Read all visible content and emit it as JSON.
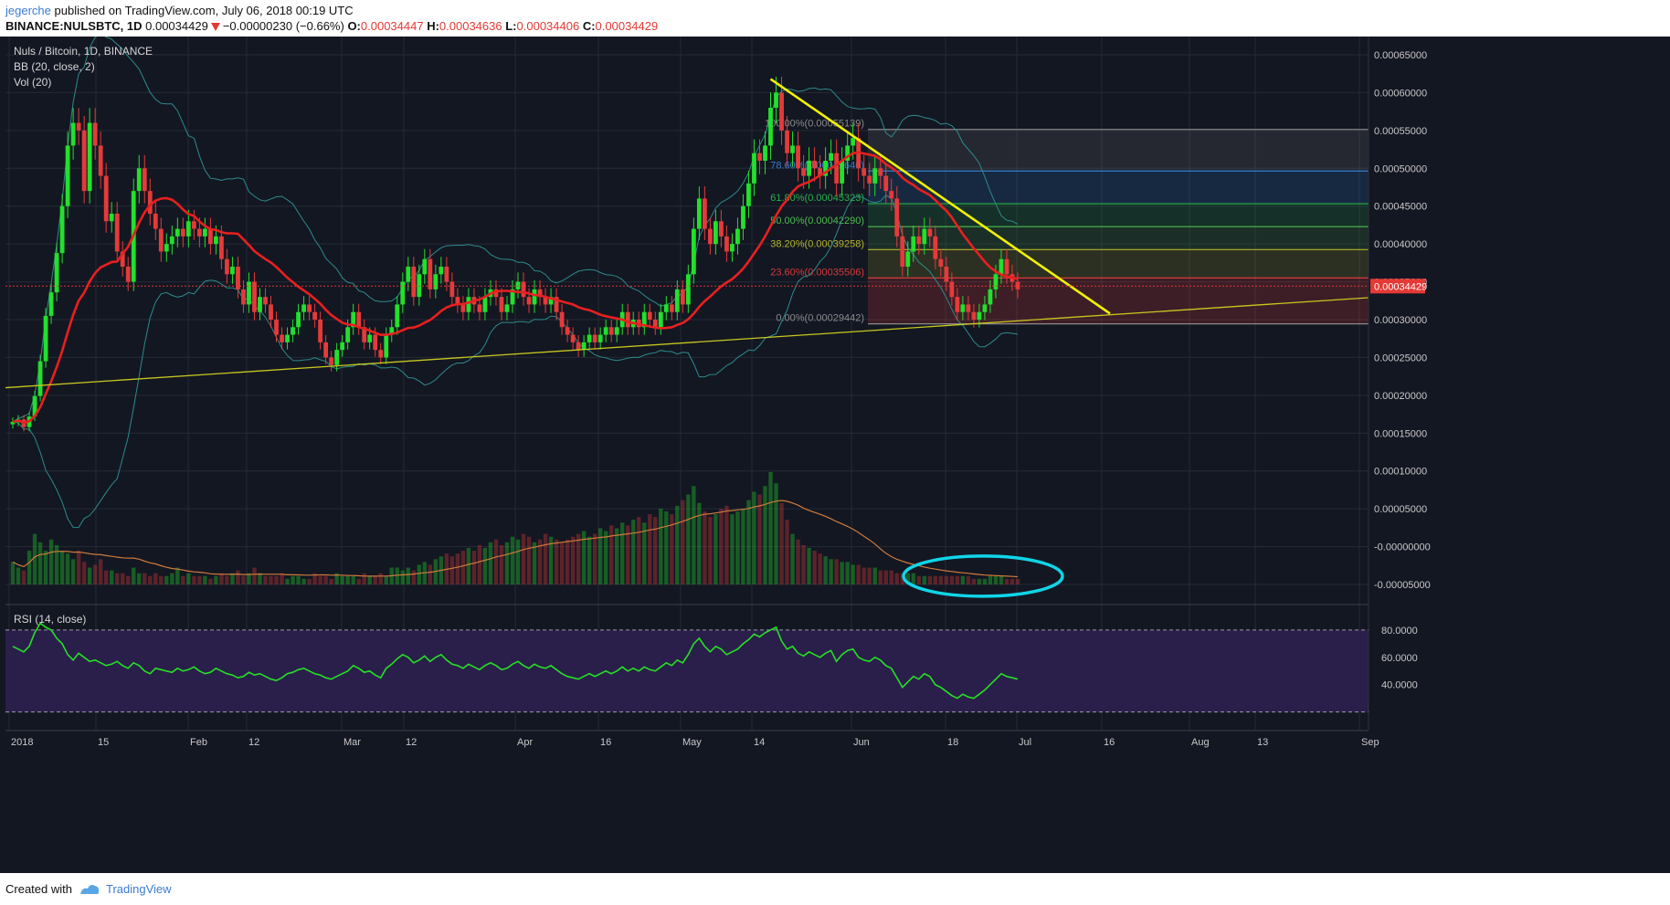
{
  "header": {
    "author": "jegerche",
    "published": "published on TradingView.com, July 06, 2018 00:19 UTC",
    "symbol": "BINANCE:NULSBTC, 1D",
    "last": "0.00034429",
    "change": "−0.00000230 (−0.66%)",
    "o_label": "O:",
    "o_value": "0.00034447",
    "h_label": "H:",
    "h_value": "0.00034636",
    "l_label": "L:",
    "l_value": "0.00034406",
    "c_label": "C:",
    "c_value": "0.00034429"
  },
  "legend": {
    "title": "Nuls / Bitcoin, 1D, BINANCE",
    "bb": "BB (20, close, 2)",
    "vol": "Vol (20)",
    "rsi": "RSI (14, close)"
  },
  "footer": {
    "created": "Created with",
    "brand": "TradingView"
  },
  "colors": {
    "background": "#131722",
    "rsi_band": "#2a1f4a",
    "up": "#22e02c",
    "down": "#e53a3a",
    "ma": "#e8201f",
    "bb": "#2d8b8b",
    "vol_ma": "#d07a3a",
    "trend": "#f2f200",
    "support": "#c8c81e",
    "rsi_line": "#25e025",
    "circle": "#10d5e8",
    "price_tag": "#e53935"
  },
  "chart_data": {
    "type": "candlestick",
    "price_axis": {
      "ticks": [
        "0.00065000",
        "0.00060000",
        "0.00055000",
        "0.00050000",
        "0.00045000",
        "0.00040000",
        "0.00035000",
        "0.00030000",
        "0.00025000",
        "0.00020000",
        "0.00015000",
        "0.00010000",
        "0.00005000",
        "-0.00000000",
        "-0.00005000"
      ],
      "range": [
        -5e-05,
        0.00065
      ]
    },
    "last_price_label": "0.00034429",
    "date_axis": [
      "2018",
      "15",
      "Feb",
      "12",
      "Mar",
      "12",
      "Apr",
      "16",
      "May",
      "14",
      "Jun",
      "18",
      "Jul",
      "16",
      "Aug",
      "13",
      "Sep"
    ],
    "rsi_axis": [
      "80.0000",
      "60.0000",
      "40.0000"
    ],
    "fib_levels": [
      {
        "label": "100.00%(0.00055139)",
        "pct": "100.00%",
        "value": 0.00055139,
        "color": "#8a8a8a"
      },
      {
        "label": "78.60%(0.00049640)",
        "pct": "78.60%",
        "value": 0.0004964,
        "color": "#2f7fd0"
      },
      {
        "label": "61.80%(0.00045323)",
        "pct": "61.80%",
        "value": 0.00045323,
        "color": "#28b24c"
      },
      {
        "label": "50.00%(0.00042290)",
        "pct": "50.00%",
        "value": 0.0004229,
        "color": "#4cbf4c"
      },
      {
        "label": "38.20%(0.00039258)",
        "pct": "38.20%",
        "value": 0.00039258,
        "color": "#b5b52a"
      },
      {
        "label": "23.60%(0.00035506)",
        "pct": "23.60%",
        "value": 0.00035506,
        "color": "#d63a3a"
      },
      {
        "label": "0.00%(0.00029442)",
        "pct": "0.00%",
        "value": 0.00029442,
        "color": "#8a8a8a"
      }
    ],
    "close_series": [
      0.000165,
      0.000168,
      0.000158,
      0.000172,
      0.000199,
      0.000245,
      0.000305,
      0.000336,
      0.000388,
      0.00045,
      0.00053,
      0.00056,
      0.00055,
      0.00047,
      0.00056,
      0.00053,
      0.00049,
      0.00043,
      0.00044,
      0.00039,
      0.00037,
      0.00035,
      0.00047,
      0.0005,
      0.00047,
      0.00044,
      0.00042,
      0.00039,
      0.0004,
      0.00041,
      0.00042,
      0.00041,
      0.00043,
      0.00042,
      0.00041,
      0.00042,
      0.0004,
      0.00041,
      0.00038,
      0.00036,
      0.00037,
      0.00034,
      0.00032,
      0.00035,
      0.00031,
      0.00033,
      0.00032,
      0.0003,
      0.00028,
      0.00027,
      0.00028,
      0.00029,
      0.00031,
      0.00032,
      0.00031,
      0.0003,
      0.00027,
      0.00025,
      0.00024,
      0.00026,
      0.00027,
      0.00029,
      0.00031,
      0.00029,
      0.00027,
      0.00028,
      0.00026,
      0.00025,
      0.00028,
      0.00029,
      0.00032,
      0.00035,
      0.00037,
      0.00033,
      0.00036,
      0.00038,
      0.00034,
      0.00036,
      0.00037,
      0.00035,
      0.00033,
      0.00032,
      0.00031,
      0.00033,
      0.00032,
      0.00031,
      0.00033,
      0.00034,
      0.00033,
      0.00031,
      0.00032,
      0.00034,
      0.00035,
      0.00033,
      0.00032,
      0.00034,
      0.00033,
      0.00032,
      0.00033,
      0.00031,
      0.00029,
      0.00028,
      0.00027,
      0.00026,
      0.00027,
      0.00028,
      0.00027,
      0.00028,
      0.00029,
      0.00028,
      0.00029,
      0.00031,
      0.00029,
      0.0003,
      0.00029,
      0.00031,
      0.0003,
      0.00029,
      0.00031,
      0.00032,
      0.00031,
      0.00034,
      0.00032,
      0.00036,
      0.00042,
      0.00046,
      0.00042,
      0.0004,
      0.00043,
      0.00041,
      0.00039,
      0.0004,
      0.00042,
      0.00045,
      0.00048,
      0.00052,
      0.00051,
      0.00053,
      0.00058,
      0.0006,
      0.00055,
      0.00052,
      0.00053,
      0.0005,
      0.00049,
      0.00051,
      0.0005,
      0.00049,
      0.00051,
      0.00052,
      0.00048,
      0.00051,
      0.00053,
      0.00054,
      0.0005,
      0.00049,
      0.00048,
      0.0005,
      0.00049,
      0.00047,
      0.00046,
      0.00041,
      0.00037,
      0.00039,
      0.00041,
      0.0004,
      0.00042,
      0.00041,
      0.00038,
      0.00037,
      0.00035,
      0.00033,
      0.00031,
      0.00032,
      0.00031,
      0.0003,
      0.00031,
      0.00032,
      0.00034,
      0.00036,
      0.00038,
      0.00036,
      0.00035,
      0.00034
    ],
    "volume": [
      8e-06,
      6e-06,
      5e-06,
      1.2e-05,
      1.8e-05,
      1.5e-05,
      1.2e-05,
      1.6e-05,
      1.4e-05,
      1.2e-05,
      1.1e-05,
      9e-06,
      1.2e-05,
      8e-06,
      6e-06,
      7e-06,
      9e-06,
      5e-06,
      5e-06,
      4e-06,
      4e-06,
      3e-06,
      6e-06,
      4e-06,
      4e-06,
      3e-06,
      4e-06,
      3e-06,
      3e-06,
      4e-06,
      6e-06,
      3e-06,
      4e-06,
      3e-06,
      3e-06,
      3e-06,
      2e-06,
      3e-06,
      4e-06,
      3e-06,
      4e-06,
      5e-06,
      3e-06,
      4e-06,
      6e-06,
      4e-06,
      3e-06,
      3e-06,
      3e-06,
      4e-06,
      2e-06,
      3e-06,
      3e-06,
      2e-06,
      2e-06,
      4e-06,
      3e-06,
      3e-06,
      2e-06,
      4e-06,
      3e-06,
      3e-06,
      3e-06,
      2e-06,
      4e-06,
      3e-06,
      3e-06,
      4e-06,
      3e-06,
      6e-06,
      6e-06,
      5e-06,
      6e-06,
      5e-06,
      7e-06,
      8e-06,
      7e-06,
      9e-06,
      1e-05,
      1.1e-05,
      1e-05,
      1.1e-05,
      1.2e-05,
      1.3e-05,
      1.2e-05,
      1.4e-05,
      1.3e-05,
      1.5e-05,
      1.6e-05,
      1.4e-05,
      1.5e-05,
      1.7e-05,
      1.6e-05,
      1.8e-05,
      1.7e-05,
      1.5e-05,
      1.6e-05,
      1.8e-05,
      1.7e-05,
      1.6e-05,
      1.5e-05,
      1.6e-05,
      1.7e-05,
      1.8e-05,
      1.9e-05,
      1.7e-05,
      1.8e-05,
      2e-05,
      1.9e-05,
      2.1e-05,
      2e-05,
      2.2e-05,
      2.1e-05,
      2.3e-05,
      2.4e-05,
      2.2e-05,
      2.5e-05,
      2.4e-05,
      2.7e-05,
      2.6e-05,
      2.5e-05,
      2.8e-05,
      3e-05,
      3.2e-05,
      3.5e-05,
      2.9e-05,
      2.6e-05,
      2.4e-05,
      2.5e-05,
      2.7e-05,
      2.8e-05,
      2.5e-05,
      2.6e-05,
      2.7e-05,
      3e-05,
      3.3e-05,
      3.2e-05,
      3.5e-05,
      4e-05,
      3.6e-05,
      2.9e-05,
      2.3e-05,
      1.8e-05,
      1.6e-05,
      1.4e-05,
      1.3e-05,
      1.2e-05,
      1.1e-05,
      1e-05,
      9e-06,
      9e-06,
      8e-06,
      8e-06,
      7e-06,
      7e-06,
      6e-06,
      6e-06,
      6e-06,
      5e-06,
      5e-06,
      5e-06,
      4e-06,
      4e-06,
      4e-06,
      4e-06,
      3e-06,
      3e-06,
      3e-06,
      3e-06,
      3e-06,
      3e-06,
      3e-06,
      3e-06,
      3e-06,
      3e-06,
      2e-06,
      2e-06,
      2e-06,
      3e-06,
      3e-06,
      3e-06,
      2e-06,
      2e-06,
      2e-06
    ],
    "rsi": [
      68,
      66,
      64,
      68,
      78,
      85,
      82,
      80,
      74,
      70,
      62,
      58,
      63,
      60,
      57,
      58,
      56,
      54,
      55,
      57,
      54,
      52,
      56,
      54,
      50,
      48,
      52,
      51,
      50,
      49,
      52,
      50,
      51,
      53,
      50,
      48,
      49,
      52,
      50,
      48,
      47,
      45,
      46,
      49,
      47,
      48,
      46,
      44,
      43,
      45,
      48,
      49,
      51,
      52,
      50,
      48,
      47,
      45,
      44,
      46,
      48,
      50,
      54,
      52,
      49,
      50,
      47,
      45,
      52,
      55,
      59,
      62,
      60,
      56,
      58,
      61,
      57,
      60,
      62,
      58,
      55,
      54,
      52,
      55,
      53,
      51,
      54,
      56,
      54,
      51,
      52,
      55,
      57,
      54,
      52,
      55,
      53,
      52,
      54,
      51,
      48,
      46,
      45,
      44,
      46,
      48,
      46,
      48,
      50,
      48,
      50,
      53,
      50,
      52,
      50,
      53,
      51,
      50,
      53,
      56,
      54,
      58,
      56,
      62,
      70,
      74,
      68,
      64,
      68,
      66,
      62,
      64,
      66,
      70,
      73,
      77,
      75,
      78,
      80,
      82,
      72,
      66,
      68,
      63,
      61,
      64,
      62,
      60,
      63,
      65,
      57,
      62,
      65,
      66,
      60,
      58,
      57,
      60,
      58,
      54,
      52,
      45,
      38,
      42,
      46,
      44,
      48,
      46,
      40,
      38,
      35,
      32,
      30,
      33,
      31,
      30,
      33,
      36,
      40,
      44,
      48,
      46,
      45,
      44
    ]
  }
}
